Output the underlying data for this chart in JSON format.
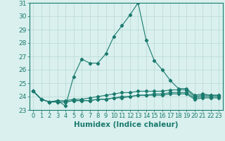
{
  "xlabel": "Humidex (Indice chaleur)",
  "x": [
    0,
    1,
    2,
    3,
    4,
    5,
    6,
    7,
    8,
    9,
    10,
    11,
    12,
    13,
    14,
    15,
    16,
    17,
    18,
    19,
    20,
    21,
    22,
    23
  ],
  "series": [
    [
      24.4,
      23.8,
      23.6,
      23.7,
      23.3,
      25.5,
      26.8,
      26.5,
      26.5,
      27.2,
      28.5,
      29.3,
      30.1,
      31.0,
      28.2,
      26.7,
      26.0,
      25.2,
      24.6,
      24.6,
      24.1,
      24.2,
      24.1,
      24.1
    ],
    [
      24.4,
      23.8,
      23.6,
      23.7,
      23.7,
      23.8,
      23.8,
      23.9,
      24.0,
      24.1,
      24.2,
      24.3,
      24.3,
      24.4,
      24.4,
      24.4,
      24.4,
      24.5,
      24.5,
      24.5,
      24.0,
      24.1,
      24.1,
      24.1
    ],
    [
      24.4,
      23.8,
      23.6,
      23.6,
      23.6,
      23.7,
      23.7,
      23.7,
      23.8,
      23.8,
      23.9,
      24.0,
      24.0,
      24.1,
      24.1,
      24.2,
      24.2,
      24.3,
      24.3,
      24.3,
      23.9,
      24.0,
      24.0,
      24.0
    ],
    [
      24.4,
      23.8,
      23.6,
      23.6,
      23.6,
      23.7,
      23.7,
      23.7,
      23.8,
      23.8,
      23.9,
      23.9,
      24.0,
      24.1,
      24.1,
      24.1,
      24.1,
      24.2,
      24.2,
      24.2,
      23.8,
      23.9,
      23.9,
      23.9
    ]
  ],
  "line_color": "#1a7a6e",
  "marker": "D",
  "markersize": 2.2,
  "linewidth": 0.8,
  "bg_color": "#d9f0ee",
  "grid_color": "#b8d8d4",
  "ylim": [
    23,
    31
  ],
  "yticks": [
    23,
    24,
    25,
    26,
    27,
    28,
    29,
    30,
    31
  ],
  "tick_fontsize": 6.5,
  "xlabel_fontsize": 7.5
}
